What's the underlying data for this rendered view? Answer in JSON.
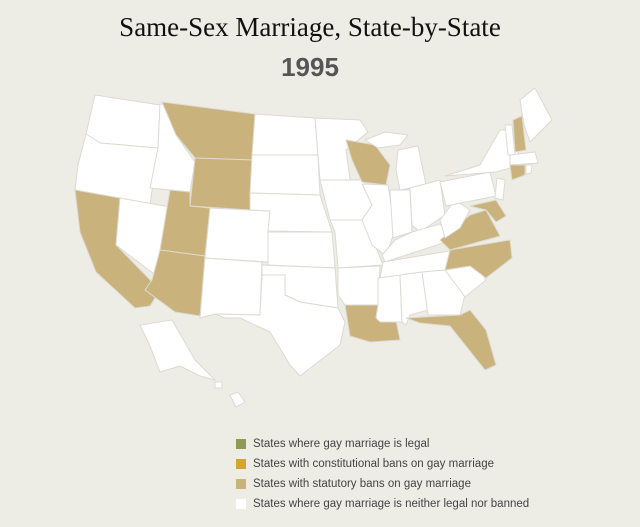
{
  "title": "Same-Sex Marriage, State-by-State",
  "year": "1995",
  "legend": {
    "items": [
      {
        "label": "States where gay marriage is legal",
        "color": "#8d9b5a"
      },
      {
        "label": "States with constitutional bans on gay marriage",
        "color": "#d3a530"
      },
      {
        "label": "States with statutory bans on gay marriage",
        "color": "#c9b27c"
      },
      {
        "label": "States where gay marriage is neither legal nor banned",
        "color": "#ffffff"
      }
    ]
  }
}
